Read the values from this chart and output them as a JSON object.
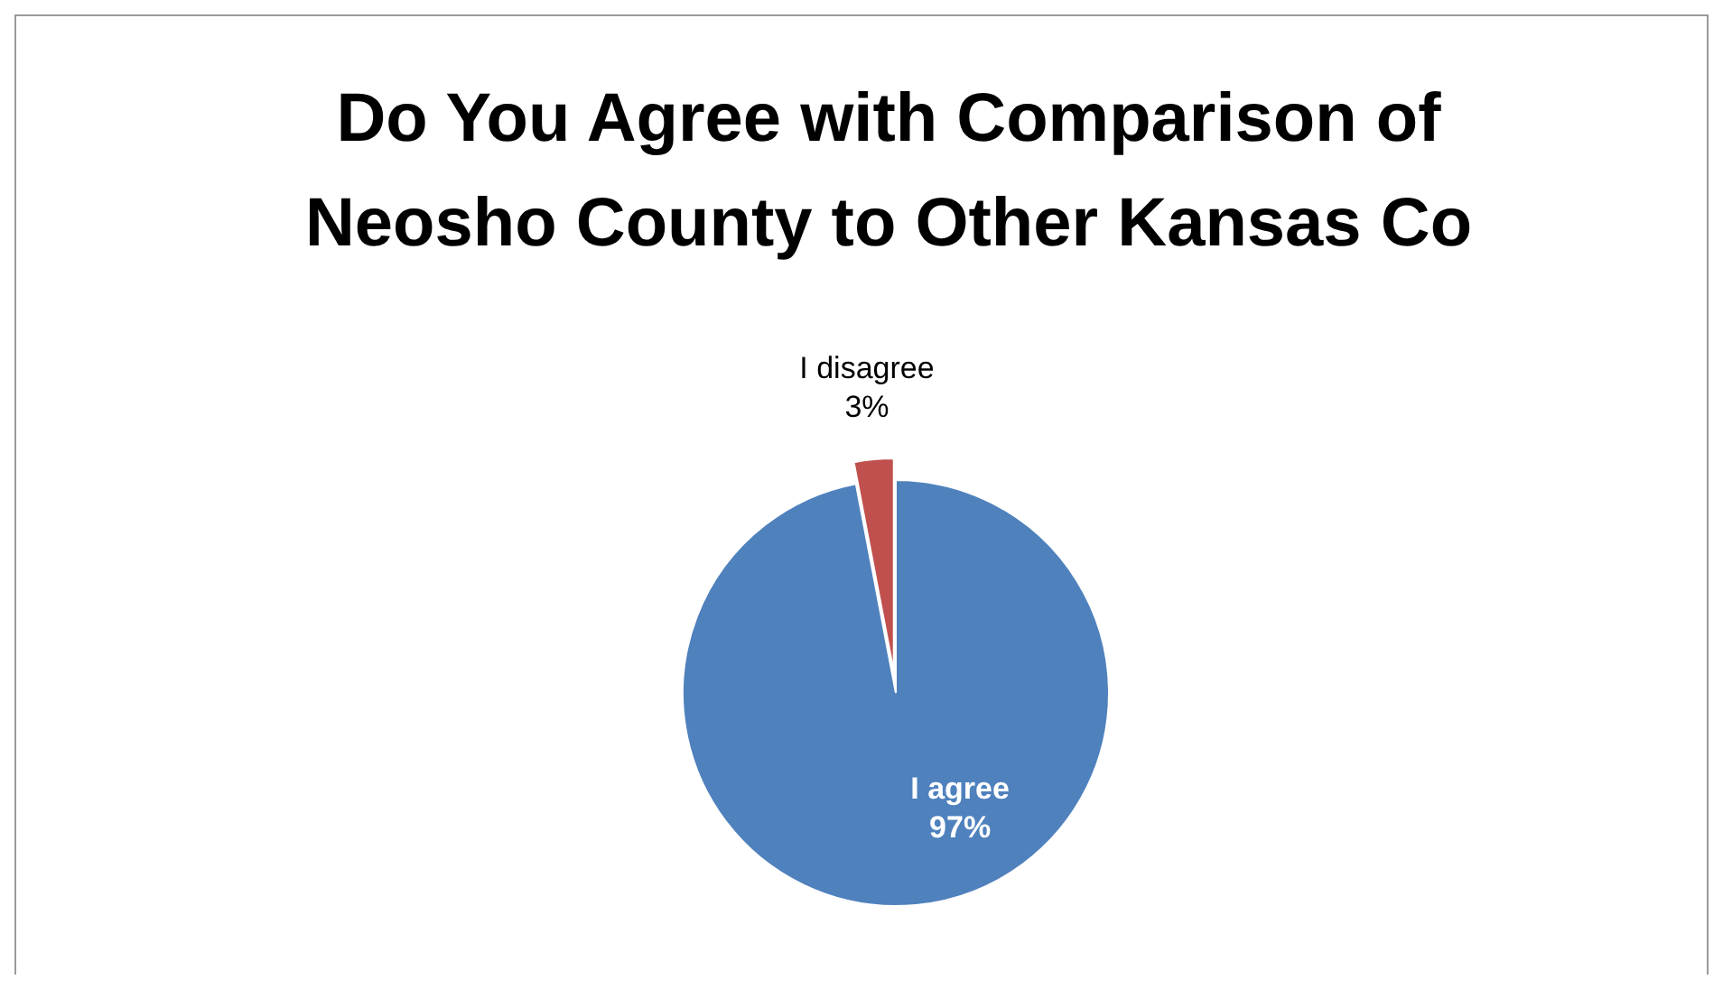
{
  "chart_data": {
    "type": "pie",
    "title": "Do You Agree with Comparison of Neosho County to Other Kansas Co",
    "categories": [
      "I agree",
      "I disagree"
    ],
    "values": [
      97,
      3
    ],
    "colors": [
      "#4f81bd",
      "#c0504d"
    ],
    "value_labels": [
      "97%",
      "3%"
    ]
  }
}
